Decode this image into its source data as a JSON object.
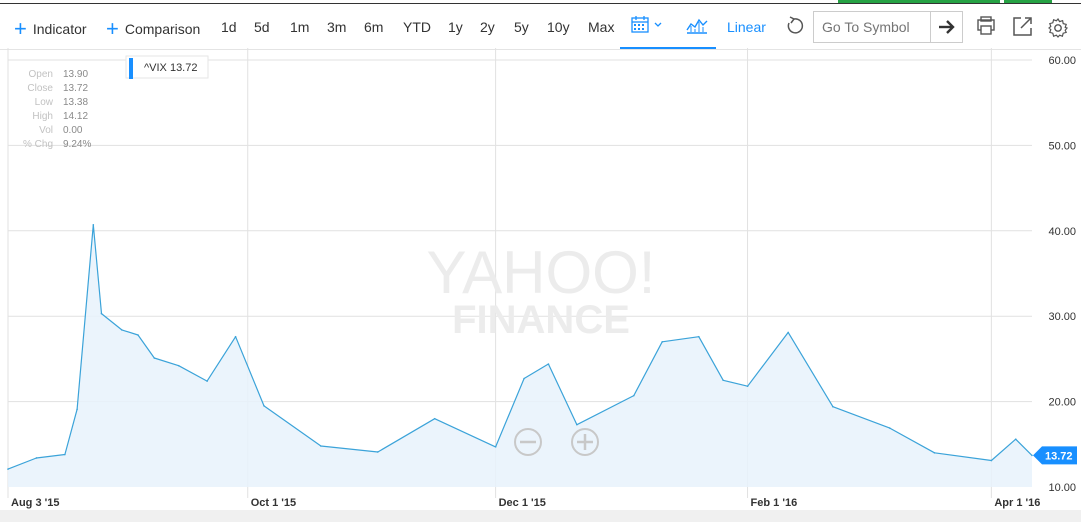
{
  "toolbar": {
    "indicator_label": "Indicator",
    "comparison_label": "Comparison",
    "ranges": [
      "1d",
      "5d",
      "1m",
      "3m",
      "6m",
      "YTD",
      "1y",
      "2y",
      "5y",
      "10y",
      "Max"
    ],
    "scale_label": "Linear",
    "search_placeholder": "Go To Symbol",
    "icons": {
      "indicator": "plus-icon",
      "comparison": "plus-icon",
      "calendar": "calendar-icon",
      "chart_type": "area-chart-icon",
      "reset": "undo-icon",
      "go": "arrow-right-icon",
      "print": "print-icon",
      "expand": "popout-icon",
      "settings": "gear-icon"
    }
  },
  "watermark": {
    "line1": "YAHOO!",
    "line2": "FINANCE"
  },
  "tooltip": {
    "rows": [
      {
        "label": "Open",
        "value": "13.90"
      },
      {
        "label": "Close",
        "value": "13.72"
      },
      {
        "label": "Low",
        "value": "13.38"
      },
      {
        "label": "High",
        "value": "14.12"
      },
      {
        "label": "Vol",
        "value": "0.00"
      },
      {
        "label": "% Chg",
        "value": "9.24%"
      }
    ]
  },
  "legend": {
    "label": "^VIX 13.72"
  },
  "colors": {
    "accent": "#188fff",
    "line": "#3ba3d9",
    "fill": "#e8f2fb",
    "grid": "#e1e1e1"
  },
  "chart_data": {
    "type": "area",
    "title": "",
    "series": [
      {
        "name": "^VIX",
        "x": [
          "2015-08-03",
          "2015-08-10",
          "2015-08-17",
          "2015-08-20",
          "2015-08-24",
          "2015-08-26",
          "2015-08-31",
          "2015-09-04",
          "2015-09-08",
          "2015-09-14",
          "2015-09-21",
          "2015-09-28",
          "2015-10-05",
          "2015-10-19",
          "2015-11-02",
          "2015-11-16",
          "2015-12-01",
          "2015-12-08",
          "2015-12-14",
          "2015-12-21",
          "2016-01-04",
          "2016-01-11",
          "2016-01-20",
          "2016-01-26",
          "2016-02-01",
          "2016-02-11",
          "2016-02-22",
          "2016-03-07",
          "2016-03-18",
          "2016-04-01",
          "2016-04-07",
          "2016-04-11"
        ],
        "values": [
          12.1,
          13.4,
          13.8,
          19.1,
          40.7,
          30.3,
          28.4,
          27.8,
          25.1,
          24.2,
          22.4,
          27.6,
          19.5,
          14.8,
          14.1,
          18.0,
          14.7,
          22.7,
          24.4,
          17.3,
          20.7,
          27.0,
          27.6,
          22.5,
          21.8,
          28.1,
          19.4,
          16.9,
          14.0,
          13.1,
          15.6,
          13.7
        ]
      }
    ],
    "x_ticks": [
      "Aug 3 '15",
      "Oct 1 '15",
      "Dec 1 '15",
      "Feb 1 '16",
      "Apr 1 '16"
    ],
    "x_tick_dates": [
      "2015-08-03",
      "2015-10-01",
      "2015-12-01",
      "2016-02-01",
      "2016-04-01"
    ],
    "y_ticks": [
      "60.00",
      "50.00",
      "40.00",
      "30.00",
      "20.00",
      "10.00"
    ],
    "ylim": [
      10,
      60
    ],
    "xlim": [
      "2015-08-03",
      "2016-04-11"
    ],
    "last_value_label": "13.72",
    "grid": true,
    "y_axis_side": "right",
    "legend_position": "top-left"
  }
}
